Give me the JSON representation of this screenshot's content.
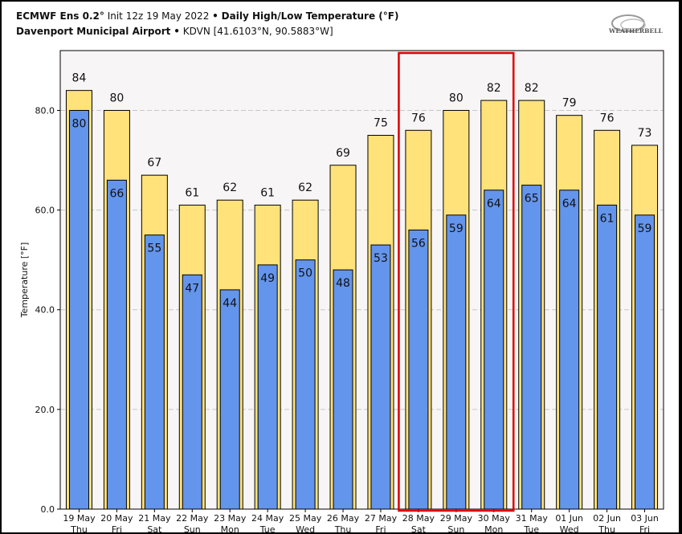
{
  "header": {
    "model": "ECMWF Ens 0.2°",
    "init": "Init 12z 19 May 2022",
    "sep": "•",
    "product": "Daily High/Low Temperature (°F)",
    "station": "Davenport Municipal Airport",
    "station_info": "KDVN [41.6103°N, 90.5883°W]",
    "logo_text": "WEATHERBELL"
  },
  "chart_data": {
    "type": "bar",
    "ylabel": "Temperature [°F]",
    "ylim": [
      0,
      92
    ],
    "yticks": [
      0,
      20,
      40,
      60,
      80
    ],
    "ytick_labels": [
      "0.0",
      "20.0",
      "40.0",
      "60.0",
      "80.0"
    ],
    "grid": true,
    "categories": [
      [
        "19 May",
        "Thu"
      ],
      [
        "20 May",
        "Fri"
      ],
      [
        "21 May",
        "Sat"
      ],
      [
        "22 May",
        "Sun"
      ],
      [
        "23 May",
        "Mon"
      ],
      [
        "24 May",
        "Tue"
      ],
      [
        "25 May",
        "Wed"
      ],
      [
        "26 May",
        "Thu"
      ],
      [
        "27 May",
        "Fri"
      ],
      [
        "28 May",
        "Sat"
      ],
      [
        "29 May",
        "Sun"
      ],
      [
        "30 May",
        "Mon"
      ],
      [
        "31 May",
        "Tue"
      ],
      [
        "01 Jun",
        "Wed"
      ],
      [
        "02 Jun",
        "Thu"
      ],
      [
        "03 Jun",
        "Fri"
      ]
    ],
    "series": [
      {
        "color": "#FFE27A",
        "values": [
          84,
          80,
          67,
          61,
          62,
          61,
          62,
          69,
          75,
          76,
          80,
          82,
          82,
          79,
          76,
          73
        ]
      },
      {
        "color": "#6495ED",
        "values": [
          80,
          66,
          55,
          47,
          44,
          49,
          50,
          48,
          53,
          56,
          59,
          64,
          65,
          64,
          61,
          59
        ]
      }
    ],
    "highlight": {
      "from_index": 9,
      "to_index": 11,
      "color": "#E00000"
    },
    "plot_background": "#F7F5F5"
  }
}
